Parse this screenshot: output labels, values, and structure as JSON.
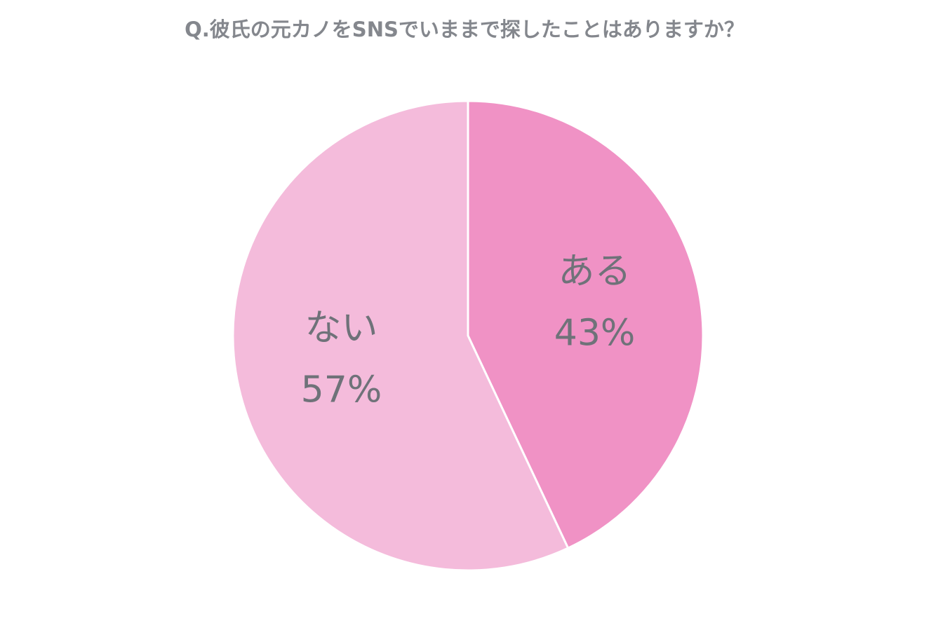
{
  "chart_data": {
    "type": "pie",
    "title": "Q.彼氏の元カノをSNSでいままで探したことはありますか？",
    "categories": [
      "ある",
      "ない"
    ],
    "values": [
      43,
      57
    ],
    "value_labels": [
      "43%",
      "57%"
    ],
    "colors": [
      "#f092c5",
      "#f4bbdb"
    ]
  }
}
